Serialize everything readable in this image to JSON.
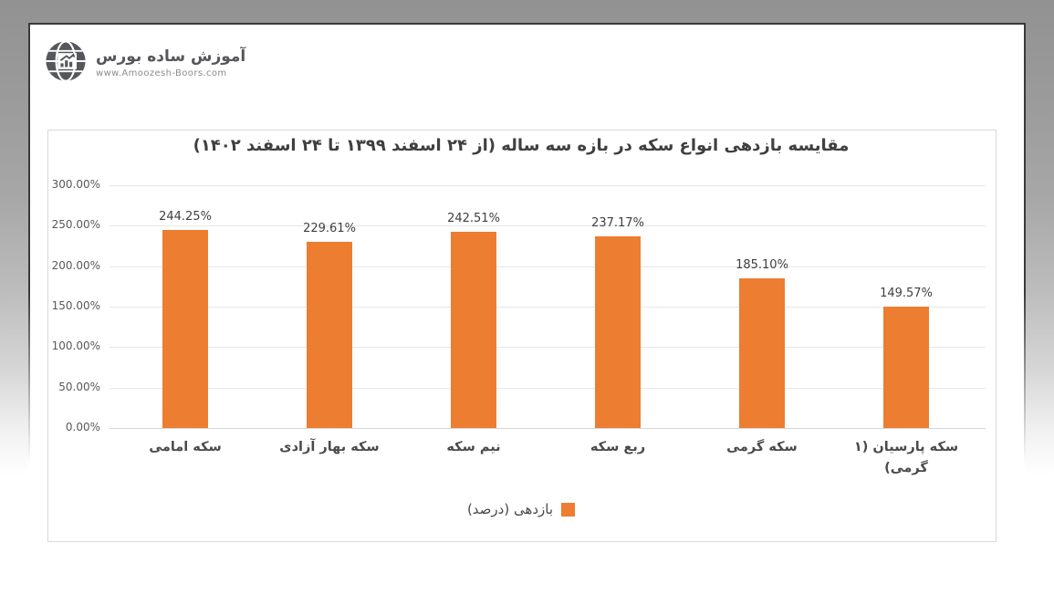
{
  "logo": {
    "name": "آموزش ساده بورس",
    "website": "www.Amoozesh-Boors.com",
    "icon": "globe-chart-icon",
    "color": "#56575B"
  },
  "chart_data": {
    "type": "bar",
    "title": "مقایسه بازدهی انواع سکه در بازه سه ساله (از ۲۴ اسفند ۱۳۹۹ تا ۲۴ اسفند ۱۴۰۲)",
    "categories": [
      "سکه امامی",
      "سکه بهار آزادی",
      "نیم سکه",
      "ربع سکه",
      "سکه گرمی",
      "سکه پارسیان (۱ گرمی)"
    ],
    "values": [
      244.25,
      229.61,
      242.51,
      237.17,
      185.1,
      149.57
    ],
    "value_labels": [
      "244.25%",
      "229.61%",
      "242.51%",
      "237.17%",
      "185.10%",
      "149.57%"
    ],
    "y_axis": {
      "tick_labels": [
        "300.00%",
        "250.00%",
        "200.00%",
        "150.00%",
        "100.00%",
        "50.00%",
        "0.00%"
      ],
      "tick_values": [
        300,
        250,
        200,
        150,
        100,
        50,
        0
      ],
      "min": 0,
      "max": 300
    },
    "legend": {
      "label": "بازدهی (درصد)",
      "position": "bottom",
      "swatch_color": "#ED7D31"
    },
    "bar_color": "#ED7D31",
    "grid": true,
    "xlabel": "",
    "ylabel": ""
  }
}
